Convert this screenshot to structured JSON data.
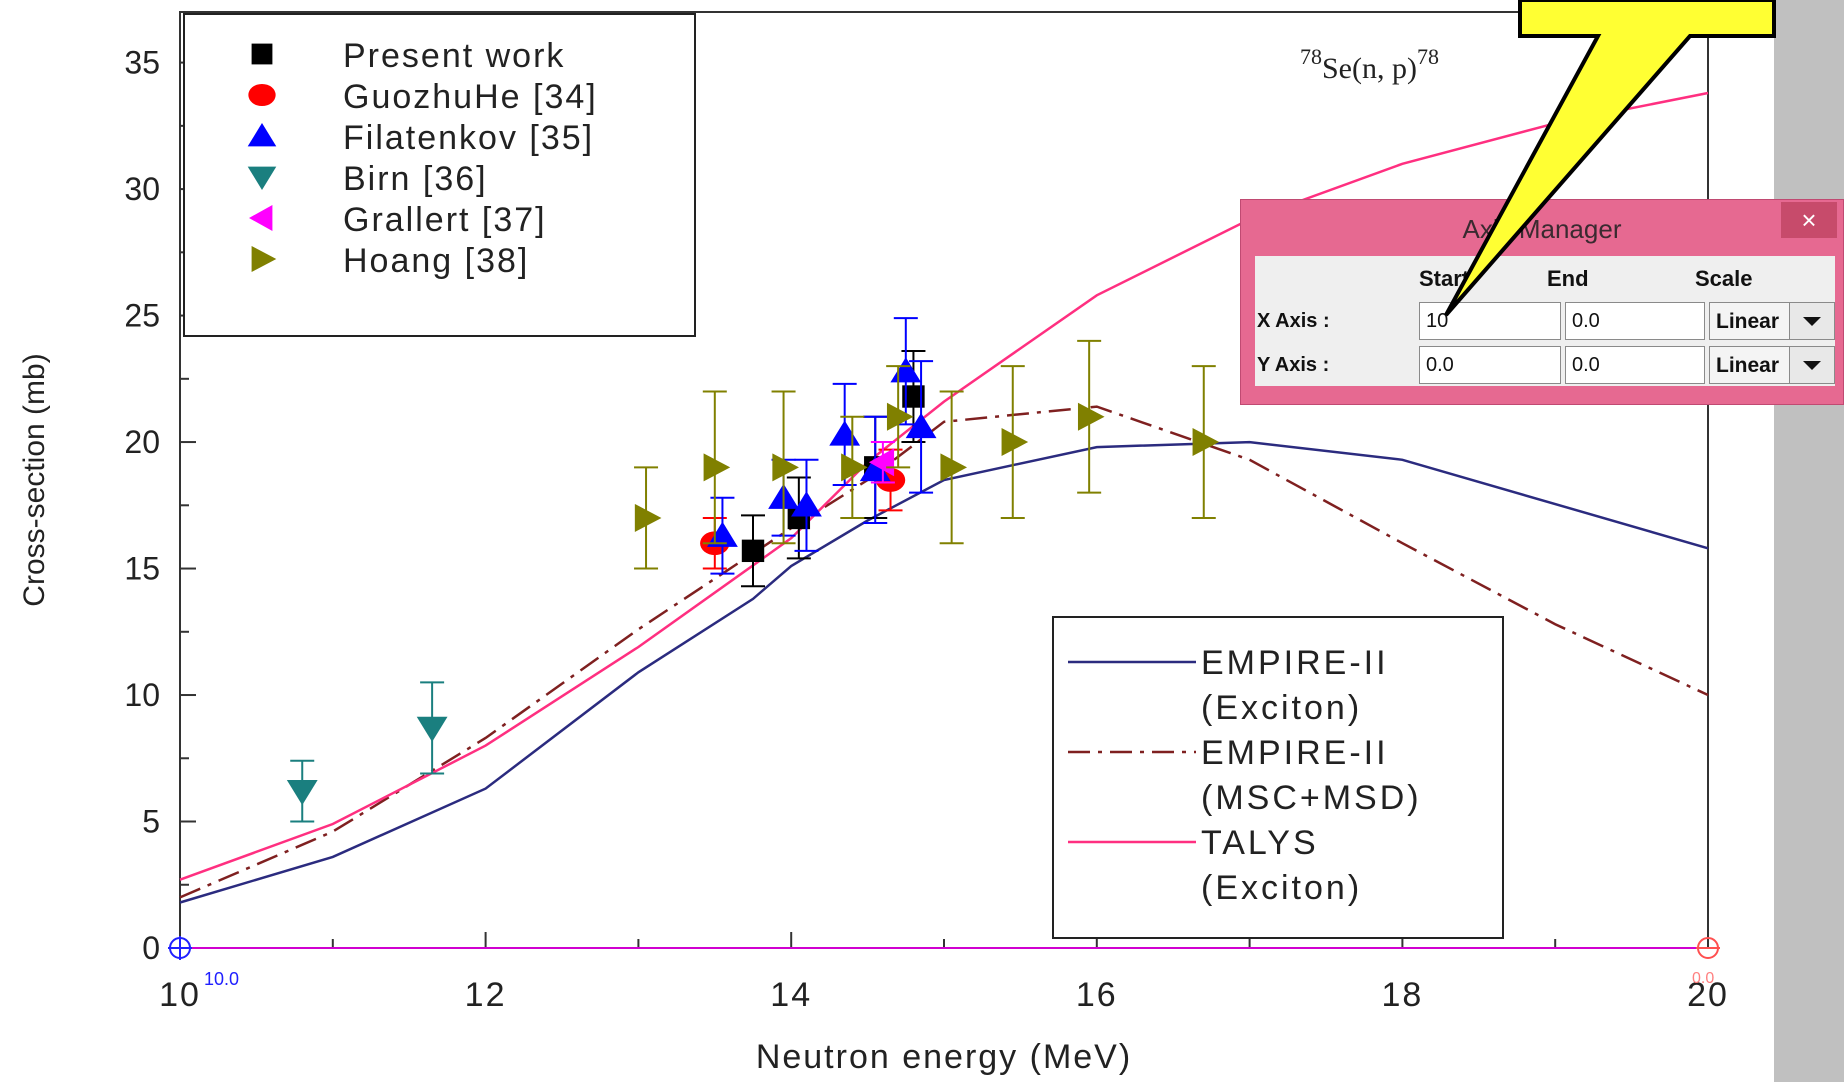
{
  "chart_data": {
    "type": "scatter",
    "title": "",
    "reaction_label_prefix": "78",
    "reaction_label_main": "Se(n, p)",
    "reaction_label_suffix": "78",
    "xlabel": "Neutron energy (MeV)",
    "ylabel": "Cross-section (mb)",
    "xlim": [
      10,
      20
    ],
    "ylim": [
      0,
      37
    ],
    "x_tick_labels": [
      "10",
      "12",
      "14",
      "16",
      "18",
      "20"
    ],
    "x_tick_values": [
      10,
      12,
      14,
      16,
      18,
      20
    ],
    "y_tick_labels": [
      "0",
      "5",
      "10",
      "15",
      "20",
      "25",
      "30",
      "35"
    ],
    "y_tick_values": [
      0,
      5,
      10,
      15,
      20,
      25,
      30,
      35
    ],
    "origin_marker_label": "10.0",
    "end_marker_label": "0.0",
    "legend_markers": {
      "position": "top-left",
      "entries": [
        "Present work",
        "GuozhuHe [34]",
        "Filatenkov [35]",
        "Birn [36]",
        "Grallert [37]",
        "Hoang [38]"
      ]
    },
    "legend_lines": {
      "position": "bottom-right",
      "entries": [
        "EMPIRE-II",
        "(Exciton)",
        "EMPIRE-II",
        "(MSC+MSD)",
        "TALYS",
        "(Exciton)"
      ]
    },
    "colors": {
      "present": "#000000",
      "guozhu": "#ff0000",
      "filatenkov": "#0000ff",
      "birn": "#1a7f7f",
      "grallert": "#ff00ff",
      "hoang": "#808000",
      "empire_exciton": "#2b2b7f",
      "empire_msd": "#7f2020",
      "talys": "#ff2f80"
    },
    "point_series": [
      {
        "name": "Present work",
        "color_key": "present",
        "marker": "square",
        "points": [
          {
            "x": 13.75,
            "y": 15.7,
            "err": 1.4
          },
          {
            "x": 14.05,
            "y": 17.0,
            "err": 1.6
          },
          {
            "x": 14.55,
            "y": 19.0,
            "err": 2.0
          },
          {
            "x": 14.8,
            "y": 21.8,
            "err": 1.8
          }
        ]
      },
      {
        "name": "GuozhuHe [34]",
        "color_key": "guozhu",
        "marker": "circle",
        "points": [
          {
            "x": 13.5,
            "y": 16.0,
            "err": 1.0
          },
          {
            "x": 14.65,
            "y": 18.5,
            "err": 1.2
          }
        ]
      },
      {
        "name": "Filatenkov [35]",
        "color_key": "filatenkov",
        "marker": "triangle-up",
        "points": [
          {
            "x": 13.55,
            "y": 16.3,
            "err": 1.5
          },
          {
            "x": 13.95,
            "y": 17.8,
            "err": 1.5
          },
          {
            "x": 14.1,
            "y": 17.5,
            "err": 1.8
          },
          {
            "x": 14.35,
            "y": 20.3,
            "err": 2.0
          },
          {
            "x": 14.55,
            "y": 18.9,
            "err": 2.1
          },
          {
            "x": 14.75,
            "y": 22.8,
            "err": 2.1
          },
          {
            "x": 14.85,
            "y": 20.6,
            "err": 2.6
          }
        ]
      },
      {
        "name": "Birn [36]",
        "color_key": "birn",
        "marker": "triangle-down",
        "points": [
          {
            "x": 10.8,
            "y": 6.2,
            "err": 1.2
          },
          {
            "x": 11.65,
            "y": 8.7,
            "err": 1.8
          }
        ]
      },
      {
        "name": "Grallert [37]",
        "color_key": "grallert",
        "marker": "triangle-left",
        "points": [
          {
            "x": 14.6,
            "y": 19.2,
            "err": 0.8
          }
        ]
      },
      {
        "name": "Hoang [38]",
        "color_key": "hoang",
        "marker": "triangle-right",
        "points": [
          {
            "x": 13.05,
            "y": 17.0,
            "err": 2.0
          },
          {
            "x": 13.5,
            "y": 19.0,
            "err": 3.0
          },
          {
            "x": 13.95,
            "y": 19.0,
            "err": 3.0
          },
          {
            "x": 14.4,
            "y": 19.0,
            "err": 2.0
          },
          {
            "x": 14.7,
            "y": 21.0,
            "err": 2.0
          },
          {
            "x": 15.05,
            "y": 19.0,
            "err": 3.0
          },
          {
            "x": 15.45,
            "y": 20.0,
            "err": 3.0
          },
          {
            "x": 15.95,
            "y": 21.0,
            "err": 3.0
          },
          {
            "x": 16.7,
            "y": 20.0,
            "err": 3.0
          }
        ]
      }
    ],
    "line_series": [
      {
        "name": "EMPIRE-II (Exciton)",
        "color_key": "empire_exciton",
        "dash": "solid",
        "x": [
          10,
          11,
          12,
          13,
          13.75,
          14,
          14.5,
          15,
          16,
          17,
          18,
          20
        ],
        "y": [
          1.8,
          3.6,
          6.3,
          10.9,
          13.8,
          15.1,
          16.9,
          18.5,
          19.8,
          20.0,
          19.3,
          15.8
        ]
      },
      {
        "name": "EMPIRE-II (MSC+MSD)",
        "color_key": "empire_msd",
        "dash": "dashdot",
        "x": [
          10,
          11,
          12,
          13,
          14,
          14.5,
          15,
          16,
          17,
          18,
          19,
          20
        ],
        "y": [
          2.0,
          4.6,
          8.3,
          12.6,
          16.6,
          18.5,
          20.8,
          21.4,
          19.3,
          16.0,
          12.8,
          10.0
        ]
      },
      {
        "name": "TALYS (Exciton)",
        "color_key": "talys",
        "dash": "solid",
        "x": [
          10,
          11,
          12,
          13,
          14,
          14.5,
          15,
          16,
          17,
          18,
          19,
          20
        ],
        "y": [
          2.7,
          4.9,
          8.0,
          11.9,
          16.2,
          19.2,
          21.6,
          25.8,
          28.8,
          31.0,
          32.6,
          33.8
        ]
      }
    ]
  },
  "axis_manager": {
    "title": "Axis Manager",
    "close_label": "×",
    "headers": {
      "start": "Start",
      "end": "End",
      "scale": "Scale"
    },
    "x_axis": {
      "label": "X Axis :",
      "start": "10",
      "end": "0.0",
      "scale": "Linear"
    },
    "y_axis": {
      "label": "Y Axis :",
      "start": "0.0",
      "end": "0.0",
      "scale": "Linear"
    }
  }
}
